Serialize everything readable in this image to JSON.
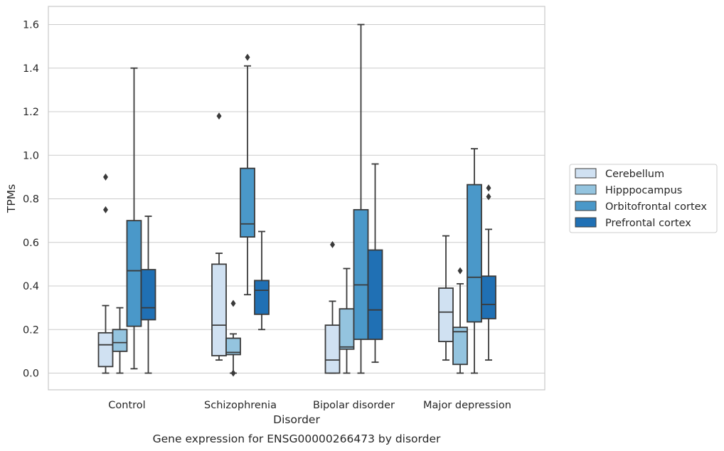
{
  "chart_data": {
    "type": "boxplot",
    "title": "Gene expression for ENSG00000266473 by disorder",
    "xlabel": "Disorder",
    "ylabel": "TPMs",
    "ylim": [
      -0.08,
      1.68
    ],
    "yticks": [
      "0.0",
      "0.2",
      "0.4",
      "0.6",
      "0.8",
      "1.0",
      "1.2",
      "1.4",
      "1.6"
    ],
    "grid": "horizontal",
    "legend_position": "right",
    "categories": [
      "Control",
      "Schizophrenia",
      "Bipolar disorder",
      "Major depression"
    ],
    "series": [
      {
        "name": "Cerebellum",
        "color": "#d0e1f2",
        "boxes": [
          {
            "whislo": 0.0,
            "q1": 0.03,
            "med": 0.13,
            "q3": 0.185,
            "whishi": 0.31,
            "fliers": [
              0.75,
              0.9
            ]
          },
          {
            "whislo": 0.06,
            "q1": 0.08,
            "med": 0.22,
            "q3": 0.5,
            "whishi": 0.55,
            "fliers": [
              1.18
            ]
          },
          {
            "whislo": 0.0,
            "q1": 0.0,
            "med": 0.06,
            "q3": 0.22,
            "whishi": 0.33,
            "fliers": [
              0.59
            ]
          },
          {
            "whislo": 0.06,
            "q1": 0.145,
            "med": 0.28,
            "q3": 0.39,
            "whishi": 0.63,
            "fliers": []
          }
        ]
      },
      {
        "name": "Hipppocampus",
        "color": "#94c4df",
        "boxes": [
          {
            "whislo": 0.0,
            "q1": 0.1,
            "med": 0.14,
            "q3": 0.2,
            "whishi": 0.3,
            "fliers": []
          },
          {
            "whislo": 0.0,
            "q1": 0.085,
            "med": 0.095,
            "q3": 0.16,
            "whishi": 0.18,
            "fliers": [
              0.32,
              0.0
            ]
          },
          {
            "whislo": 0.0,
            "q1": 0.11,
            "med": 0.12,
            "q3": 0.295,
            "whishi": 0.48,
            "fliers": []
          },
          {
            "whislo": 0.0,
            "q1": 0.04,
            "med": 0.19,
            "q3": 0.21,
            "whishi": 0.41,
            "fliers": [
              0.47
            ]
          }
        ]
      },
      {
        "name": "Orbitofrontal cortex",
        "color": "#4a98c9",
        "boxes": [
          {
            "whislo": 0.02,
            "q1": 0.215,
            "med": 0.47,
            "q3": 0.7,
            "whishi": 1.4,
            "fliers": []
          },
          {
            "whislo": 0.36,
            "q1": 0.625,
            "med": 0.685,
            "q3": 0.94,
            "whishi": 1.41,
            "fliers": [
              1.45
            ]
          },
          {
            "whislo": 0.0,
            "q1": 0.155,
            "med": 0.405,
            "q3": 0.75,
            "whishi": 1.6,
            "fliers": []
          },
          {
            "whislo": 0.0,
            "q1": 0.235,
            "med": 0.44,
            "q3": 0.865,
            "whishi": 1.03,
            "fliers": []
          }
        ]
      },
      {
        "name": "Prefrontal cortex",
        "color": "#2070b4",
        "boxes": [
          {
            "whislo": 0.0,
            "q1": 0.245,
            "med": 0.3,
            "q3": 0.475,
            "whishi": 0.72,
            "fliers": []
          },
          {
            "whislo": 0.2,
            "q1": 0.27,
            "med": 0.38,
            "q3": 0.425,
            "whishi": 0.65,
            "fliers": []
          },
          {
            "whislo": 0.05,
            "q1": 0.155,
            "med": 0.29,
            "q3": 0.565,
            "whishi": 0.96,
            "fliers": []
          },
          {
            "whislo": 0.06,
            "q1": 0.25,
            "med": 0.315,
            "q3": 0.445,
            "whishi": 0.66,
            "fliers": [
              0.81,
              0.85
            ]
          }
        ]
      }
    ]
  }
}
